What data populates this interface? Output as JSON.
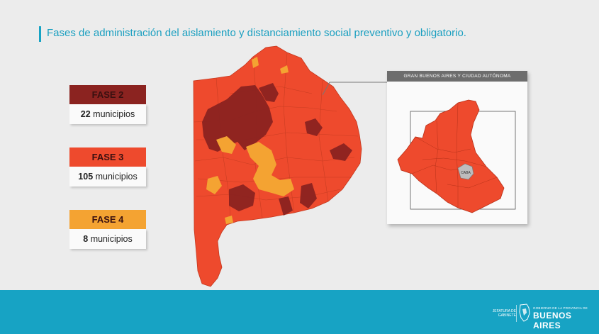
{
  "title": "Fases de administración del aislamiento y distanciamiento social preventivo y obligatorio.",
  "phases": [
    {
      "label": "FASE 2",
      "count": "22",
      "unit": "municipios",
      "color": "#8b2320"
    },
    {
      "label": "FASE 3",
      "count": "105",
      "unit": "municipios",
      "color": "#ee4a2d"
    },
    {
      "label": "FASE 4",
      "count": "8",
      "unit": "municipios",
      "color": "#f4a332"
    }
  ],
  "inset": {
    "header": "GRAN BUENOS AIRES Y CIUDAD AUTÓNOMA",
    "caba_label": "CABA"
  },
  "footer": {
    "left_line1": "JEFATURA DE",
    "left_line2": "GABINETE",
    "right_small": "GOBIERNO DE LA PROVINCIA DE",
    "right_big": "BUENOS AIRES"
  },
  "icons": {
    "logo": "province-emblem-icon"
  }
}
